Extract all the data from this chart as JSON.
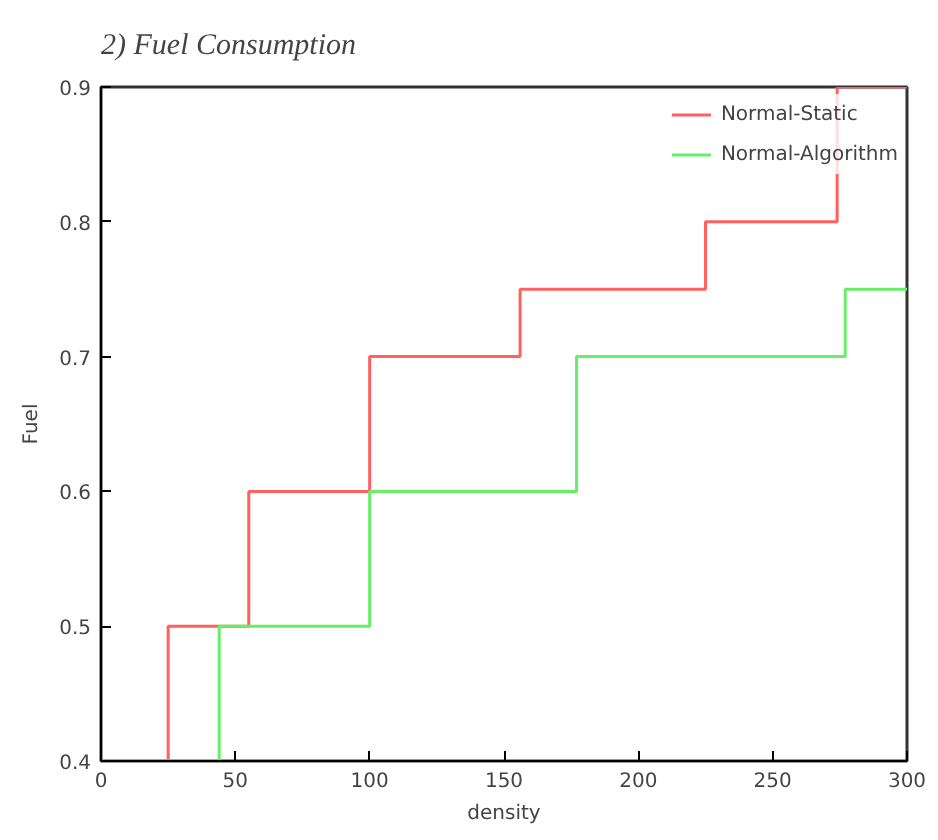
{
  "chart_data": {
    "type": "step",
    "title": "2)    Fuel Consumption",
    "xlabel": "density",
    "ylabel": "Fuel",
    "xlim": [
      0,
      300
    ],
    "ylim": [
      0.4,
      0.9
    ],
    "xticks": [
      0,
      50,
      100,
      150,
      200,
      250,
      300
    ],
    "yticks": [
      0.4,
      0.5,
      0.6,
      0.7,
      0.8,
      0.9
    ],
    "grid": false,
    "legend": "top right",
    "series": [
      {
        "name": "Normal-Static",
        "color": "#ff6060",
        "x": [
          0,
          25,
          55,
          100,
          156,
          225,
          274,
          300
        ],
        "values": [
          0.4,
          0.5,
          0.6,
          0.7,
          0.75,
          0.8,
          0.9,
          0.9
        ]
      },
      {
        "name": "Normal-Algorithm",
        "color": "#66ee66",
        "x": [
          0,
          44,
          100,
          177,
          277,
          300
        ],
        "values": [
          0.4,
          0.5,
          0.6,
          0.7,
          0.75,
          0.75
        ]
      }
    ]
  }
}
